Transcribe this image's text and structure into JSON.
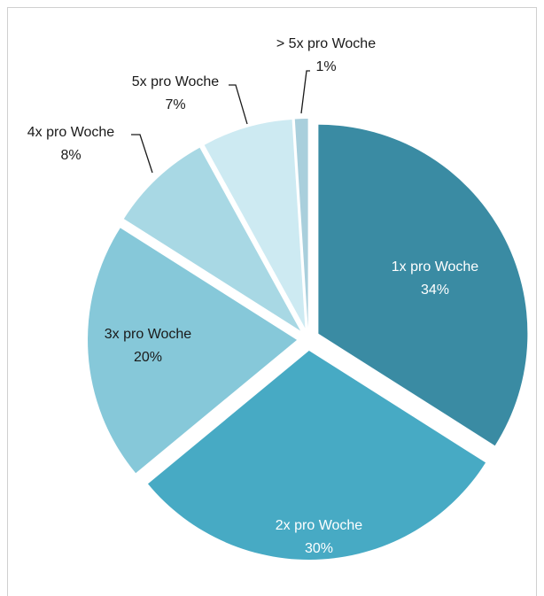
{
  "chart_data": {
    "type": "pie",
    "categories": [
      "1x pro Woche",
      "2x pro Woche",
      "3x pro Woche",
      "4x pro Woche",
      "5x pro Woche",
      "> 5x pro Woche"
    ],
    "values": [
      34,
      30,
      20,
      8,
      7,
      1
    ],
    "value_labels": [
      "34%",
      "30%",
      "20%",
      "8%",
      "7%",
      "1%"
    ],
    "colors": [
      "#3a8ba3",
      "#47aac4",
      "#86c8d9",
      "#a8d8e4",
      "#cdeaf2",
      "#a9cfdc"
    ]
  }
}
